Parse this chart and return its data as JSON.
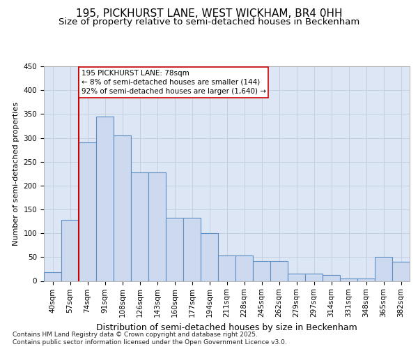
{
  "title_line1": "195, PICKHURST LANE, WEST WICKHAM, BR4 0HH",
  "title_line2": "Size of property relative to semi-detached houses in Beckenham",
  "xlabel": "Distribution of semi-detached houses by size in Beckenham",
  "ylabel": "Number of semi-detached properties",
  "bar_labels": [
    "40sqm",
    "57sqm",
    "74sqm",
    "91sqm",
    "108sqm",
    "126sqm",
    "143sqm",
    "160sqm",
    "177sqm",
    "194sqm",
    "211sqm",
    "228sqm",
    "245sqm",
    "262sqm",
    "279sqm",
    "297sqm",
    "314sqm",
    "331sqm",
    "348sqm",
    "365sqm",
    "382sqm"
  ],
  "bar_values": [
    18,
    128,
    290,
    345,
    305,
    228,
    228,
    133,
    133,
    100,
    53,
    53,
    42,
    42,
    15,
    15,
    12,
    5,
    5,
    50,
    40
  ],
  "bar_color": "#ccd9ee",
  "bar_edge_color": "#5e8fc4",
  "grid_color": "#beccde",
  "background_color": "#dce6f5",
  "vline_x_idx": 2,
  "vline_color": "#cc0000",
  "annotation_text": "195 PICKHURST LANE: 78sqm\n← 8% of semi-detached houses are smaller (144)\n92% of semi-detached houses are larger (1,640) →",
  "annotation_box_color": "#ffffff",
  "annotation_box_edge": "#cc0000",
  "ylim": [
    0,
    450
  ],
  "yticks": [
    0,
    50,
    100,
    150,
    200,
    250,
    300,
    350,
    400,
    450
  ],
  "footer_line1": "Contains HM Land Registry data © Crown copyright and database right 2025.",
  "footer_line2": "Contains public sector information licensed under the Open Government Licence v3.0.",
  "title_fontsize": 11,
  "subtitle_fontsize": 9.5,
  "ylabel_fontsize": 8,
  "xlabel_fontsize": 9,
  "tick_fontsize": 7.5,
  "annotation_fontsize": 7.5,
  "footer_fontsize": 6.5
}
